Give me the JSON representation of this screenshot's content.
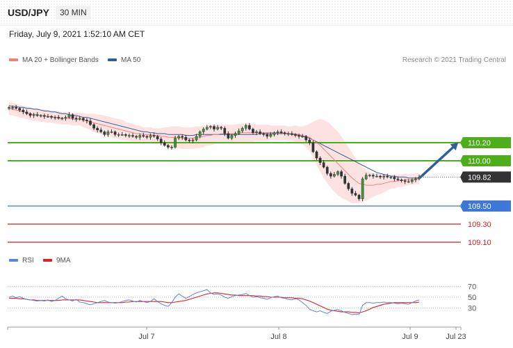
{
  "header": {
    "symbol": "USD/JPY",
    "timeframe": "30 MIN",
    "timestamp": "Friday, July 9, 2021 1:52:10 AM CET"
  },
  "legend": {
    "price": [
      {
        "label": "MA 20 + Bollinger Bands",
        "color": "#f08080"
      },
      {
        "label": "MA 50",
        "color": "#2f5f98"
      }
    ],
    "rsi": [
      {
        "label": "RSI",
        "color": "#5b87d6"
      },
      {
        "label": "9MA",
        "color": "#dd2222"
      }
    ]
  },
  "copyright": "Research © 2021 Trading Central",
  "chart_data": {
    "type": "candlestick",
    "price_axis": {
      "min": 109.0,
      "max": 110.7
    },
    "x_labels": [
      "Jul 7",
      "Jul 8",
      "Jul 9",
      "Jul 23"
    ],
    "levels": [
      {
        "value": 110.2,
        "label": "110.20",
        "kind": "resistance",
        "color": "#4caf1a"
      },
      {
        "value": 110.0,
        "label": "110.00",
        "kind": "resistance",
        "color": "#4caf1a"
      },
      {
        "value": 109.5,
        "label": "109.50",
        "kind": "support",
        "color": "#3d78d8"
      },
      {
        "value": 109.3,
        "label": "109.30",
        "kind": "support",
        "color": "#d42020"
      },
      {
        "value": 109.1,
        "label": "109.10",
        "kind": "support",
        "color": "#d42020"
      }
    ],
    "current": {
      "value": 109.82,
      "label": "109.82"
    },
    "arrow_target": 110.2,
    "closes": [
      110.59,
      110.59,
      110.58,
      110.56,
      110.54,
      110.52,
      110.5,
      110.51,
      110.5,
      110.5,
      110.49,
      110.49,
      110.48,
      110.48,
      110.47,
      110.47,
      110.48,
      110.51,
      110.47,
      110.46,
      110.47,
      110.45,
      110.44,
      110.4,
      110.36,
      110.34,
      110.32,
      110.29,
      110.32,
      110.32,
      110.29,
      110.29,
      110.29,
      110.28,
      110.28,
      110.27,
      110.26,
      110.28,
      110.27,
      110.26,
      110.28,
      110.27,
      110.24,
      110.2,
      110.17,
      110.15,
      110.15,
      110.25,
      110.27,
      110.26,
      110.23,
      110.22,
      110.23,
      110.27,
      110.32,
      110.35,
      110.37,
      110.38,
      110.35,
      110.37,
      110.36,
      110.3,
      110.25,
      110.28,
      110.3,
      110.33,
      110.36,
      110.39,
      110.35,
      110.31,
      110.32,
      110.3,
      110.29,
      110.27,
      110.29,
      110.31,
      110.32,
      110.31,
      110.3,
      110.3,
      110.29,
      110.28,
      110.27,
      110.27,
      110.23,
      110.2,
      110.1,
      110.03,
      109.98,
      109.93,
      109.86,
      109.83,
      109.85,
      109.88,
      109.83,
      109.75,
      109.69,
      109.64,
      109.62,
      109.58,
      109.8,
      109.84,
      109.84,
      109.83,
      109.83,
      109.82,
      109.83,
      109.82,
      109.82,
      109.8,
      109.79,
      109.78,
      109.77,
      109.77,
      109.79,
      109.8,
      109.82
    ],
    "ma20": [
      110.58,
      110.57,
      110.56,
      110.55,
      110.54,
      110.53,
      110.52,
      110.51,
      110.51,
      110.5,
      110.5,
      110.49,
      110.49,
      110.48,
      110.48,
      110.47,
      110.47,
      110.47,
      110.46,
      110.46,
      110.46,
      110.45,
      110.44,
      110.43,
      110.42,
      110.41,
      110.4,
      110.39,
      110.38,
      110.37,
      110.36,
      110.35,
      110.34,
      110.33,
      110.32,
      110.31,
      110.3,
      110.3,
      110.29,
      110.29,
      110.29,
      110.28,
      110.28,
      110.27,
      110.27,
      110.26,
      110.26,
      110.26,
      110.26,
      110.25,
      110.25,
      110.25,
      110.25,
      110.26,
      110.26,
      110.27,
      110.28,
      110.28,
      110.29,
      110.29,
      110.3,
      110.3,
      110.3,
      110.3,
      110.3,
      110.31,
      110.31,
      110.31,
      110.31,
      110.31,
      110.31,
      110.31,
      110.31,
      110.31,
      110.31,
      110.31,
      110.31,
      110.31,
      110.31,
      110.3,
      110.3,
      110.3,
      110.29,
      110.28,
      110.27,
      110.26,
      110.23,
      110.2,
      110.17,
      110.13,
      110.09,
      110.05,
      110.01,
      109.97,
      109.93,
      109.89,
      109.85,
      109.81,
      109.78,
      109.75,
      109.74,
      109.73,
      109.73,
      109.73,
      109.74,
      109.74,
      109.75,
      109.76,
      109.77,
      109.77,
      109.78,
      109.78,
      109.79,
      109.79,
      109.79,
      109.8,
      109.8
    ],
    "bb_width": [
      0.07,
      0.07,
      0.07,
      0.07,
      0.07,
      0.07,
      0.07,
      0.07,
      0.07,
      0.07,
      0.07,
      0.07,
      0.07,
      0.07,
      0.07,
      0.07,
      0.07,
      0.07,
      0.07,
      0.07,
      0.07,
      0.08,
      0.08,
      0.09,
      0.1,
      0.1,
      0.11,
      0.11,
      0.11,
      0.11,
      0.11,
      0.11,
      0.11,
      0.1,
      0.1,
      0.1,
      0.09,
      0.09,
      0.08,
      0.08,
      0.08,
      0.08,
      0.08,
      0.09,
      0.1,
      0.11,
      0.12,
      0.12,
      0.12,
      0.12,
      0.12,
      0.12,
      0.12,
      0.12,
      0.12,
      0.12,
      0.11,
      0.11,
      0.11,
      0.1,
      0.1,
      0.1,
      0.1,
      0.1,
      0.1,
      0.1,
      0.1,
      0.1,
      0.1,
      0.1,
      0.09,
      0.09,
      0.09,
      0.09,
      0.08,
      0.08,
      0.08,
      0.08,
      0.08,
      0.08,
      0.08,
      0.09,
      0.09,
      0.1,
      0.12,
      0.15,
      0.2,
      0.25,
      0.29,
      0.32,
      0.34,
      0.35,
      0.35,
      0.35,
      0.34,
      0.32,
      0.3,
      0.28,
      0.25,
      0.22,
      0.19,
      0.17,
      0.15,
      0.13,
      0.12,
      0.11,
      0.1,
      0.09,
      0.08,
      0.08,
      0.07,
      0.07,
      0.07,
      0.06,
      0.06,
      0.06,
      0.06
    ],
    "ma50": [
      110.61,
      110.6,
      110.6,
      110.59,
      110.59,
      110.58,
      110.58,
      110.57,
      110.57,
      110.56,
      110.55,
      110.55,
      110.54,
      110.54,
      110.53,
      110.52,
      110.52,
      110.51,
      110.5,
      110.5,
      110.49,
      110.48,
      110.48,
      110.47,
      110.46,
      110.45,
      110.44,
      110.43,
      110.42,
      110.41,
      110.4,
      110.39,
      110.38,
      110.37,
      110.36,
      110.35,
      110.34,
      110.33,
      110.32,
      110.32,
      110.31,
      110.31,
      110.3,
      110.3,
      110.3,
      110.29,
      110.29,
      110.29,
      110.29,
      110.29,
      110.28,
      110.28,
      110.28,
      110.29,
      110.29,
      110.29,
      110.29,
      110.29,
      110.29,
      110.29,
      110.29,
      110.29,
      110.29,
      110.29,
      110.29,
      110.29,
      110.29,
      110.29,
      110.29,
      110.29,
      110.29,
      110.3,
      110.3,
      110.3,
      110.3,
      110.3,
      110.3,
      110.3,
      110.3,
      110.3,
      110.29,
      110.29,
      110.28,
      110.27,
      110.26,
      110.25,
      110.23,
      110.21,
      110.19,
      110.17,
      110.15,
      110.13,
      110.11,
      110.09,
      110.07,
      110.05,
      110.03,
      110.01,
      109.99,
      109.97,
      109.95,
      109.93,
      109.91,
      109.89,
      109.87,
      109.86,
      109.85,
      109.84,
      109.83,
      109.83,
      109.82,
      109.82,
      109.82,
      109.81,
      109.81,
      109.81,
      109.81
    ],
    "rsi": {
      "levels": [
        70,
        50,
        30
      ],
      "range": [
        0,
        100
      ],
      "rsi_values": [
        50,
        52,
        49,
        51,
        48,
        46,
        45,
        44,
        43,
        44,
        43,
        45,
        42,
        44,
        48,
        52,
        47,
        45,
        43,
        46,
        41,
        40,
        38,
        36,
        38,
        40,
        42,
        44,
        41,
        40,
        39,
        40,
        42,
        44,
        45,
        43,
        41,
        44,
        42,
        40,
        42,
        47,
        42,
        38,
        35,
        33,
        40,
        50,
        56,
        52,
        48,
        51,
        55,
        58,
        60,
        62,
        64,
        58,
        55,
        56,
        54,
        50,
        48,
        51,
        53,
        54,
        55,
        57,
        53,
        50,
        51,
        49,
        48,
        46,
        49,
        51,
        52,
        49,
        48,
        46,
        45,
        47,
        45,
        40,
        35,
        28,
        25,
        23,
        25,
        22,
        20,
        24,
        26,
        27,
        25,
        22,
        20,
        18,
        19,
        18,
        35,
        40,
        40,
        39,
        40,
        40,
        41,
        40,
        40,
        39,
        38,
        39,
        38,
        37,
        40,
        43,
        45
      ],
      "ma9_values": [
        48,
        48,
        48,
        47,
        47,
        46,
        45,
        45,
        44,
        44,
        44,
        44,
        44,
        44,
        44,
        45,
        45,
        45,
        45,
        45,
        45,
        44,
        43,
        42,
        41,
        40,
        40,
        40,
        40,
        40,
        40,
        40,
        40,
        41,
        41,
        42,
        42,
        42,
        42,
        42,
        42,
        42,
        42,
        42,
        41,
        40,
        40,
        41,
        42,
        43,
        44,
        46,
        48,
        50,
        52,
        54,
        56,
        57,
        58,
        58,
        57,
        56,
        55,
        54,
        54,
        53,
        53,
        53,
        53,
        53,
        52,
        52,
        51,
        51,
        50,
        50,
        50,
        50,
        49,
        49,
        49,
        48,
        48,
        47,
        45,
        43,
        40,
        37,
        34,
        31,
        28,
        26,
        25,
        24,
        23,
        23,
        23,
        22,
        22,
        21,
        23,
        25,
        28,
        31,
        33,
        35,
        37,
        38,
        39,
        40,
        40,
        40,
        40,
        40,
        40,
        40,
        41
      ]
    }
  }
}
